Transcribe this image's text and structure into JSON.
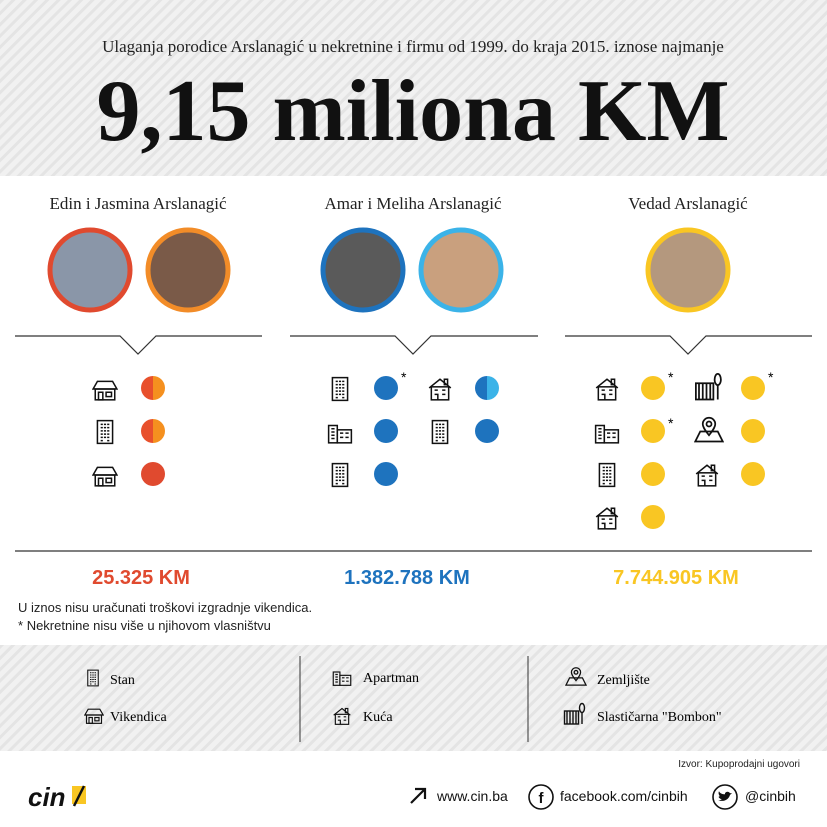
{
  "header": {
    "subtitle": "Ulaganja porodice Arslanagić u nekretnine i firmu od 1999. do kraja 2015. iznose najmanje",
    "title": "9,15 miliona KM"
  },
  "families": [
    {
      "name": "Edin i Jasmina Arslanagić",
      "total": "25.325 KM"
    },
    {
      "name": "Amar i Meliha Arslanagić",
      "total": "1.382.788 KM"
    },
    {
      "name": "Vedad Arslanagić",
      "total": "7.744.905 KM"
    }
  ],
  "notes": {
    "exclusion": "U iznos nisu uračunati troškovi izgradnje vikendica.",
    "marker": "*",
    "footnote": "Nekretnine nisu više u njihovom vlasništvu"
  },
  "legend": [
    "Stan",
    "Vikendica",
    "Apartman",
    "Kuća",
    "Zemljište",
    "Slastičarna \"Bombon\""
  ],
  "source": "Izvor: Kupoprodajni ugovori",
  "footer": {
    "logo": "cin",
    "links": [
      "www.cin.ba",
      "facebook.com/cinbih",
      "@cinbih"
    ]
  }
}
